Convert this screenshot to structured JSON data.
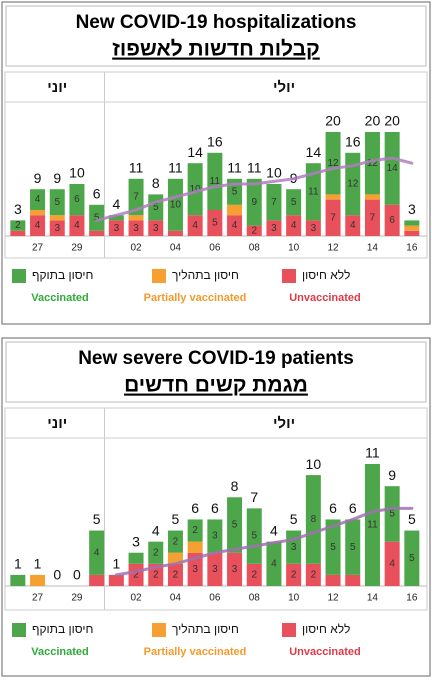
{
  "chart_data": [
    {
      "type": "bar",
      "stacked": true,
      "title": "New COVID-19 hospitalizations",
      "subtitle": "קבלות חדשות לאשפוז",
      "groups": [
        {
          "label": "יוני",
          "count": 5
        },
        {
          "label": "יולי",
          "count": 16
        }
      ],
      "categories": [
        null,
        "27",
        null,
        "29",
        null,
        null,
        "02",
        null,
        "04",
        null,
        "06",
        null,
        "08",
        null,
        "10",
        null,
        "12",
        null,
        "14",
        null,
        "16"
      ],
      "totals": [
        3,
        9,
        9,
        10,
        6,
        4,
        11,
        8,
        11,
        14,
        16,
        11,
        11,
        10,
        9,
        14,
        20,
        16,
        20,
        20,
        3
      ],
      "series": [
        {
          "name": "Vaccinated",
          "name_he": "חיסון בתוקף",
          "color": "#4ea64a",
          "text_color": "#2eab3a",
          "values": [
            2,
            4,
            5,
            6,
            5,
            1,
            7,
            5,
            10,
            10,
            11,
            5,
            9,
            7,
            5,
            11,
            12,
            12,
            12,
            14,
            1
          ]
        },
        {
          "name": "Partially vaccinated",
          "name_he": "חיסון בתהליך",
          "color": "#f6a032",
          "text_color": "#f39a2b",
          "values": [
            0,
            1,
            1,
            0,
            0,
            0,
            1,
            0,
            0,
            0,
            0,
            2,
            0,
            0,
            0,
            0,
            1,
            0,
            1,
            0,
            1
          ]
        },
        {
          "name": "Unvaccinated",
          "name_he": "ללא חיסון",
          "color": "#e8505b",
          "text_color": "#e03a47",
          "values": [
            1,
            4,
            3,
            4,
            1,
            3,
            3,
            3,
            1,
            4,
            5,
            4,
            2,
            3,
            4,
            3,
            7,
            4,
            7,
            6,
            1
          ]
        }
      ],
      "trend": {
        "color": "#b07cc0",
        "values": [
          null,
          null,
          null,
          null,
          3,
          4,
          5,
          6.5,
          7.5,
          8.5,
          9.5,
          10,
          10,
          10.5,
          11,
          12,
          13,
          13.5,
          14.5,
          15,
          14
        ]
      }
    },
    {
      "type": "bar",
      "stacked": true,
      "title": "New severe COVID-19 patients",
      "subtitle": "מגמת קשים חדשים",
      "groups": [
        {
          "label": "יוני",
          "count": 5
        },
        {
          "label": "יולי",
          "count": 16
        }
      ],
      "categories": [
        null,
        "27",
        null,
        "29",
        null,
        null,
        "02",
        null,
        "04",
        null,
        "06",
        null,
        "08",
        null,
        "10",
        null,
        "12",
        null,
        "14",
        null,
        "16"
      ],
      "totals": [
        1,
        1,
        0,
        0,
        5,
        1,
        3,
        4,
        5,
        6,
        6,
        8,
        7,
        4,
        5,
        10,
        6,
        6,
        11,
        9,
        5
      ],
      "series": [
        {
          "name": "Vaccinated",
          "name_he": "חיסון בתוקף",
          "color": "#4ea64a",
          "text_color": "#2eab3a",
          "values": [
            1,
            0,
            0,
            0,
            4,
            0,
            1,
            2,
            2,
            2,
            3,
            5,
            5,
            4,
            3,
            8,
            5,
            5,
            11,
            5,
            5
          ]
        },
        {
          "name": "Partially vaccinated",
          "name_he": "חיסון בתהליך",
          "color": "#f6a032",
          "text_color": "#f39a2b",
          "values": [
            0,
            1,
            0,
            0,
            0,
            0,
            0,
            0,
            1,
            1,
            0,
            0,
            0,
            0,
            0,
            0,
            0,
            0,
            0,
            0,
            0
          ]
        },
        {
          "name": "Unvaccinated",
          "name_he": "ללא חיסון",
          "color": "#e8505b",
          "text_color": "#e03a47",
          "values": [
            0,
            0,
            0,
            0,
            1,
            1,
            2,
            2,
            2,
            3,
            3,
            3,
            2,
            0,
            2,
            2,
            1,
            1,
            0,
            4,
            0
          ]
        }
      ],
      "trend": {
        "color": "#a070b0",
        "values": [
          null,
          null,
          null,
          null,
          null,
          1,
          1.3,
          1.7,
          2,
          2.5,
          3,
          3.3,
          3.6,
          3.9,
          4.2,
          4.8,
          5.4,
          6,
          6.7,
          7,
          7
        ]
      }
    }
  ]
}
